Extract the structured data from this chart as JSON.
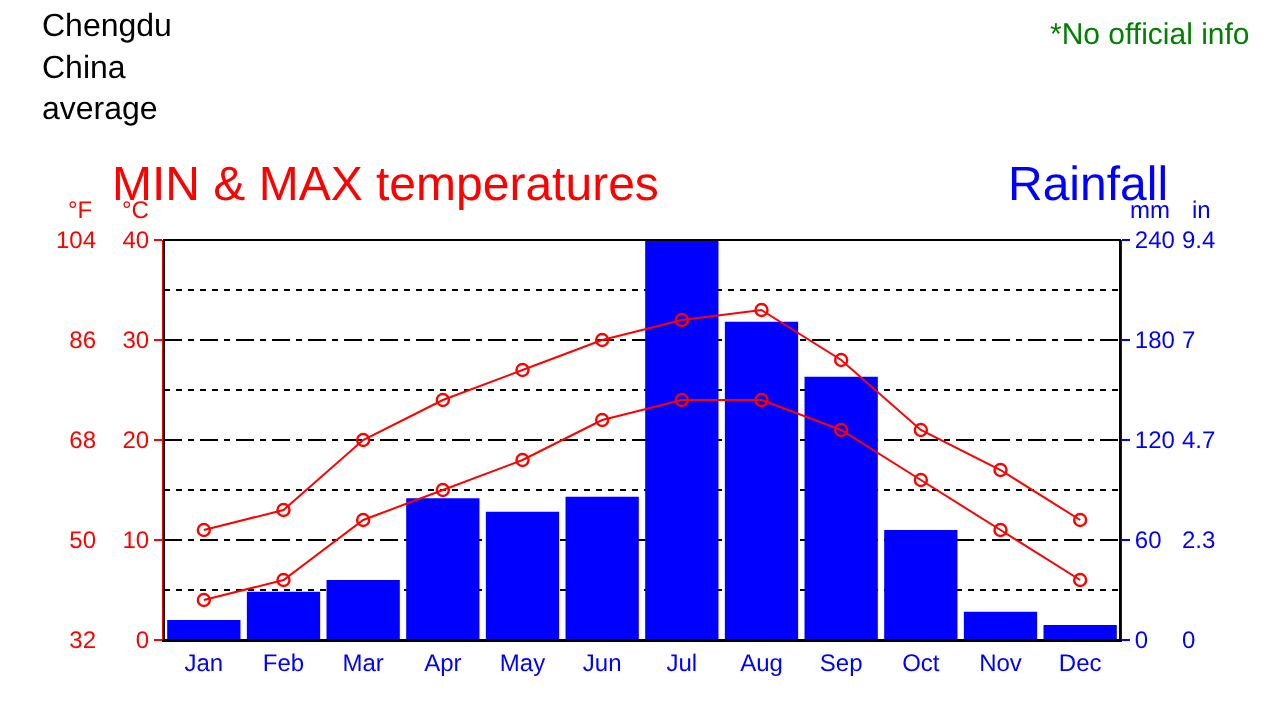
{
  "chart_data": {
    "type": "bar",
    "title": "Chengdu\nChina\naverage",
    "annotations": [
      "*No official info",
      "in",
      "0",
      "2.3",
      "4.7",
      "7",
      "9.4"
    ],
    "categories": [
      "Jan",
      "Feb",
      "Mar",
      "Apr",
      "May",
      "Jun",
      "Jul",
      "Aug",
      "Sep",
      "Oct",
      "Nov",
      "Dec"
    ],
    "series": [
      {
        "name": "MIN & MAX temperatures",
        "type": "line",
        "color": "#ff0000",
        "values": [
          11,
          13,
          20,
          24,
          27,
          30,
          32,
          33,
          28,
          21,
          17,
          12
        ]
      },
      {
        "type": "line",
        "color": "#ff0000",
        "values": [
          4,
          6,
          12,
          15,
          18,
          22,
          24,
          24,
          21,
          16,
          11,
          6
        ]
      },
      {
        "name": "Rainfall",
        "axis": "y2",
        "color": "#0000ff",
        "values": [
          12,
          29,
          36,
          85,
          77,
          86,
          240,
          191,
          158,
          66,
          17,
          9
        ]
      }
    ],
    "ylabel": "°C",
    "ylim": [
      0,
      40
    ],
    "yticks": [
      0,
      10,
      20,
      30,
      40
    ],
    "y2label": "mm",
    "y2lim": [
      0,
      240
    ],
    "y2ticks": [
      0,
      60,
      120,
      180,
      240
    ],
    "y3label": "°F",
    "y3lim": [
      32,
      104
    ],
    "y3ticks": [
      32,
      50,
      68,
      86,
      104
    ],
    "grid": true,
    "marker": "circle"
  }
}
